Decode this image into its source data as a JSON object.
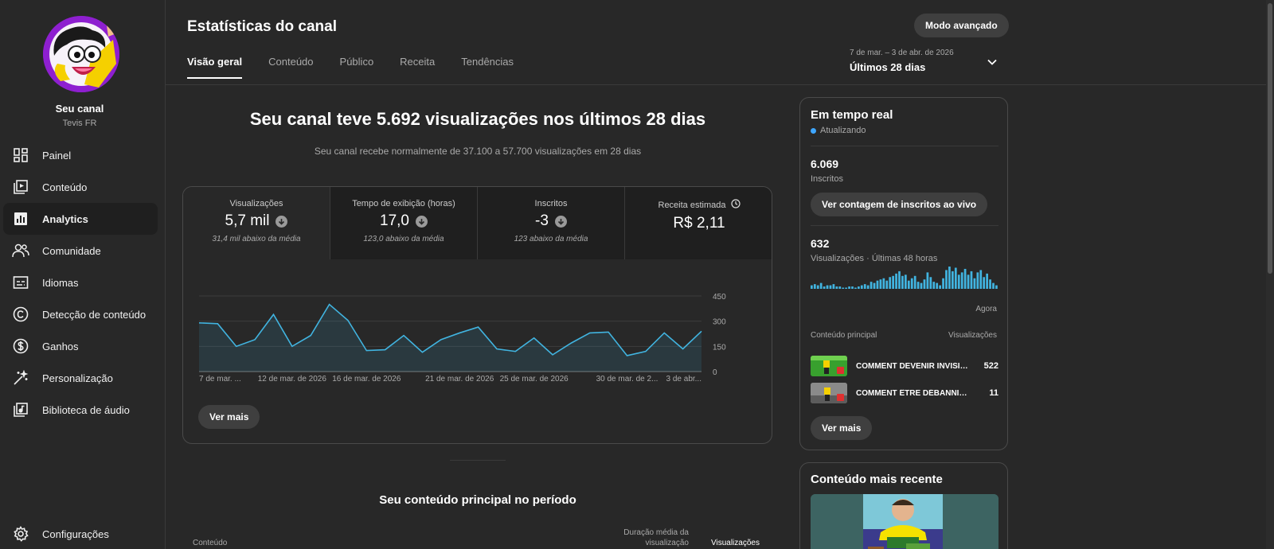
{
  "sidebar": {
    "channel_name": "Seu canal",
    "channel_handle": "Tevis FR",
    "items": [
      {
        "label": "Painel",
        "icon": "dashboard-icon"
      },
      {
        "label": "Conteúdo",
        "icon": "content-icon"
      },
      {
        "label": "Analytics",
        "icon": "analytics-icon",
        "active": true
      },
      {
        "label": "Comunidade",
        "icon": "community-icon"
      },
      {
        "label": "Idiomas",
        "icon": "subtitles-icon"
      },
      {
        "label": "Detecção de conteúdo",
        "icon": "copyright-icon"
      },
      {
        "label": "Ganhos",
        "icon": "earn-icon"
      },
      {
        "label": "Personalização",
        "icon": "magic-wand-icon"
      },
      {
        "label": "Biblioteca de áudio",
        "icon": "audio-library-icon"
      }
    ],
    "settings_label": "Configurações"
  },
  "header": {
    "title": "Estatísticas do canal",
    "advanced_button": "Modo avançado",
    "tabs": [
      "Visão geral",
      "Conteúdo",
      "Público",
      "Receita",
      "Tendências"
    ],
    "active_tab": 0,
    "date_sub": "7 de mar. – 3 de abr. de 2026",
    "date_main": "Últimos 28 dias"
  },
  "summary": {
    "headline": "Seu canal teve 5.692 visualizações nos últimos 28 dias",
    "subline": "Seu canal recebe normalmente de 37.100 a 57.700 visualizações em 28 dias"
  },
  "metrics": [
    {
      "label": "Visualizações",
      "value": "5,7 mil",
      "note": "31,4 mil abaixo da média",
      "trend": "down"
    },
    {
      "label": "Tempo de exibição (horas)",
      "value": "17,0",
      "note": "123,0 abaixo da média",
      "trend": "down"
    },
    {
      "label": "Inscritos",
      "value": "-3",
      "note": "123 abaixo da média",
      "trend": "down"
    },
    {
      "label": "Receita estimada",
      "value": "R$ 2,11",
      "note": "",
      "trend": "none"
    }
  ],
  "chart_data": {
    "type": "area",
    "series": [
      {
        "values": [
          290,
          285,
          150,
          190,
          340,
          150,
          215,
          400,
          305,
          125,
          130,
          215,
          115,
          190,
          230,
          265,
          135,
          120,
          200,
          100,
          170,
          230,
          235,
          95,
          120,
          230,
          135,
          240
        ]
      }
    ],
    "xlabels": [
      "7 de mar. ...",
      "12 de mar. de 2026",
      "16 de mar. de 2026",
      "21 de mar. de 2026",
      "25 de mar. de 2026",
      "30 de mar. de 2...",
      "3 de abr..."
    ],
    "yticks": [
      "450",
      "300",
      "150",
      "0"
    ],
    "ylim": [
      0,
      450
    ],
    "color": "#41b4e0"
  },
  "main_see_more": "Ver mais",
  "top_content": {
    "title": "Seu conteúdo principal no período",
    "col_content": "Conteúdo",
    "col_avg_duration": "Duração média da visualização",
    "col_views": "Visualizações"
  },
  "realtime": {
    "title": "Em tempo real",
    "status": "Atualizando",
    "subs_value": "6.069",
    "subs_label": "Inscritos",
    "live_button": "Ver contagem de inscritos ao vivo",
    "views_value": "632",
    "views_label": "Visualizações · Últimas 48 horas",
    "bars": [
      3,
      4,
      3,
      5,
      2,
      3,
      3,
      4,
      2,
      2,
      1,
      1,
      2,
      2,
      1,
      2,
      3,
      4,
      3,
      6,
      5,
      7,
      8,
      9,
      7,
      10,
      11,
      13,
      15,
      11,
      12,
      7,
      9,
      11,
      6,
      5,
      8,
      14,
      10,
      6,
      5,
      3,
      9,
      16,
      19,
      15,
      18,
      12,
      14,
      17,
      12,
      15,
      9,
      14,
      16,
      10,
      13,
      8,
      5,
      3
    ],
    "now_label": "Agora",
    "col_content": "Conteúdo principal",
    "col_views": "Visualizações",
    "videos": [
      {
        "title": "COMMENT DEVENIR INVISIBLE",
        "views": "522"
      },
      {
        "title": "COMMENT ÊTRE DÉBANNI DE",
        "views": "11"
      }
    ],
    "see_more": "Ver mais"
  },
  "recent": {
    "title": "Conteúdo mais recente"
  }
}
